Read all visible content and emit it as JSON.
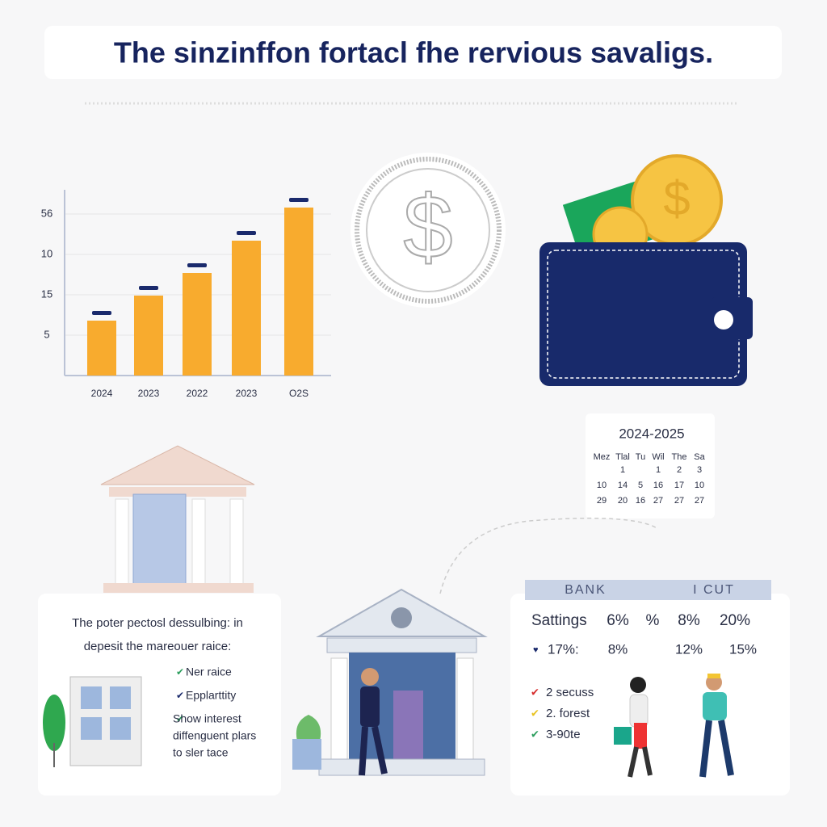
{
  "title": "The sinzinffon fortacl fhe rervious savaligs.",
  "chart_data": {
    "type": "bar",
    "categories": [
      "2024",
      "2023",
      "2022",
      "2023",
      "O2S"
    ],
    "values": [
      6.8,
      9.9,
      12.7,
      16.7,
      20.8
    ],
    "color": "#f8ab2e",
    "ylim": [
      0,
      23
    ],
    "y_axis_labels": [
      "56",
      "10",
      "15",
      "5"
    ],
    "grid": true
  },
  "calendar": {
    "title": "2024-2025",
    "days": [
      "Mez",
      "Tlal",
      "Tu",
      "Wil",
      "The",
      "Sa"
    ],
    "rows": [
      [
        "1",
        "1",
        "2",
        "3"
      ],
      [
        "10",
        "14",
        "5",
        "16",
        "17",
        "10"
      ],
      [
        "29",
        "20",
        "16",
        "27",
        "27",
        "27"
      ]
    ]
  },
  "left_panel": {
    "lines": [
      "The poter pectosl dessulbing: in",
      "depesit the mareouer raice:"
    ],
    "checklist": [
      [
        "Ner raice"
      ],
      [
        "Epplarttity"
      ],
      [
        "Show interest",
        "diffenguent plars",
        "to sler tace"
      ]
    ]
  },
  "right_panel": {
    "header": [
      "BANK",
      "I CUT"
    ],
    "rows": [
      [
        "Sattings",
        "6%",
        "%",
        "8%",
        "20%"
      ],
      [
        "17%:",
        "8%",
        "12%",
        "15%"
      ]
    ],
    "checklist": [
      "2 secuss",
      "2. forest",
      "3-90te"
    ]
  }
}
